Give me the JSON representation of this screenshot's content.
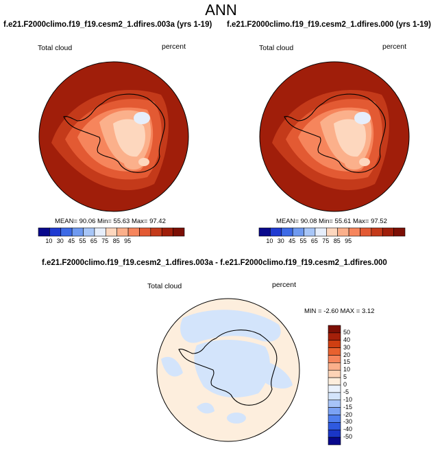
{
  "main_title": "ANN",
  "colors": {
    "seq_palette": [
      "#08088c",
      "#1f3ad1",
      "#3d6ae6",
      "#6f9af0",
      "#a8c6f7",
      "#e6eefb",
      "#fdd7be",
      "#fbb08b",
      "#f6855c",
      "#e35a33",
      "#c43a1a",
      "#a01e0a",
      "#7c0f05"
    ],
    "diff_palette": [
      "#08088c",
      "#1a36c7",
      "#2f5ae0",
      "#4f7eee",
      "#7ba2f4",
      "#a7c4f8",
      "#d3e4fb",
      "#eaf2fd",
      "#fdeedd",
      "#fcd3b6",
      "#fbb08b",
      "#f6855c",
      "#e8612f",
      "#cf3f12",
      "#a5200a",
      "#7c0f05"
    ],
    "land_outline": "#000000"
  },
  "panels": [
    {
      "title": "f.e21.F2000climo.f19_f19.cesm2_1.dfires.003a (yrs 1-19)",
      "variable": "Total cloud",
      "units": "percent",
      "stats": {
        "mean": "90.06",
        "min": "55.63",
        "max": "97.42"
      },
      "stats_text": "MEAN=  90.06  Min=  55.63  Max=  97.42",
      "colorbar_labels": [
        "10",
        "30",
        "45",
        "55",
        "65",
        "75",
        "85",
        "95"
      ]
    },
    {
      "title": "f.e21.F2000climo.f19_f19.cesm2_1.dfires.000 (yrs 1-19)",
      "variable": "Total cloud",
      "units": "percent",
      "stats": {
        "mean": "90.08",
        "min": "55.61",
        "max": "97.52"
      },
      "stats_text": "MEAN=  90.08  Min=  55.61  Max=  97.52",
      "colorbar_labels": [
        "10",
        "30",
        "45",
        "55",
        "65",
        "75",
        "85",
        "95"
      ]
    }
  ],
  "diff_panel": {
    "title": "f.e21.F2000climo.f19_f19.cesm2_1.dfires.003a - f.e21.F2000climo.f19_f19.cesm2_1.dfires.000",
    "variable": "Total cloud",
    "units": "percent",
    "stats": {
      "min": "-2.60",
      "max": "3.12"
    },
    "stats_text": "MIN =  -2.60 MAX =   3.12",
    "colorbar_labels": [
      "50",
      "40",
      "30",
      "20",
      "15",
      "10",
      "5",
      "0",
      "-5",
      "-10",
      "-15",
      "-20",
      "-30",
      "-40",
      "-50"
    ]
  }
}
